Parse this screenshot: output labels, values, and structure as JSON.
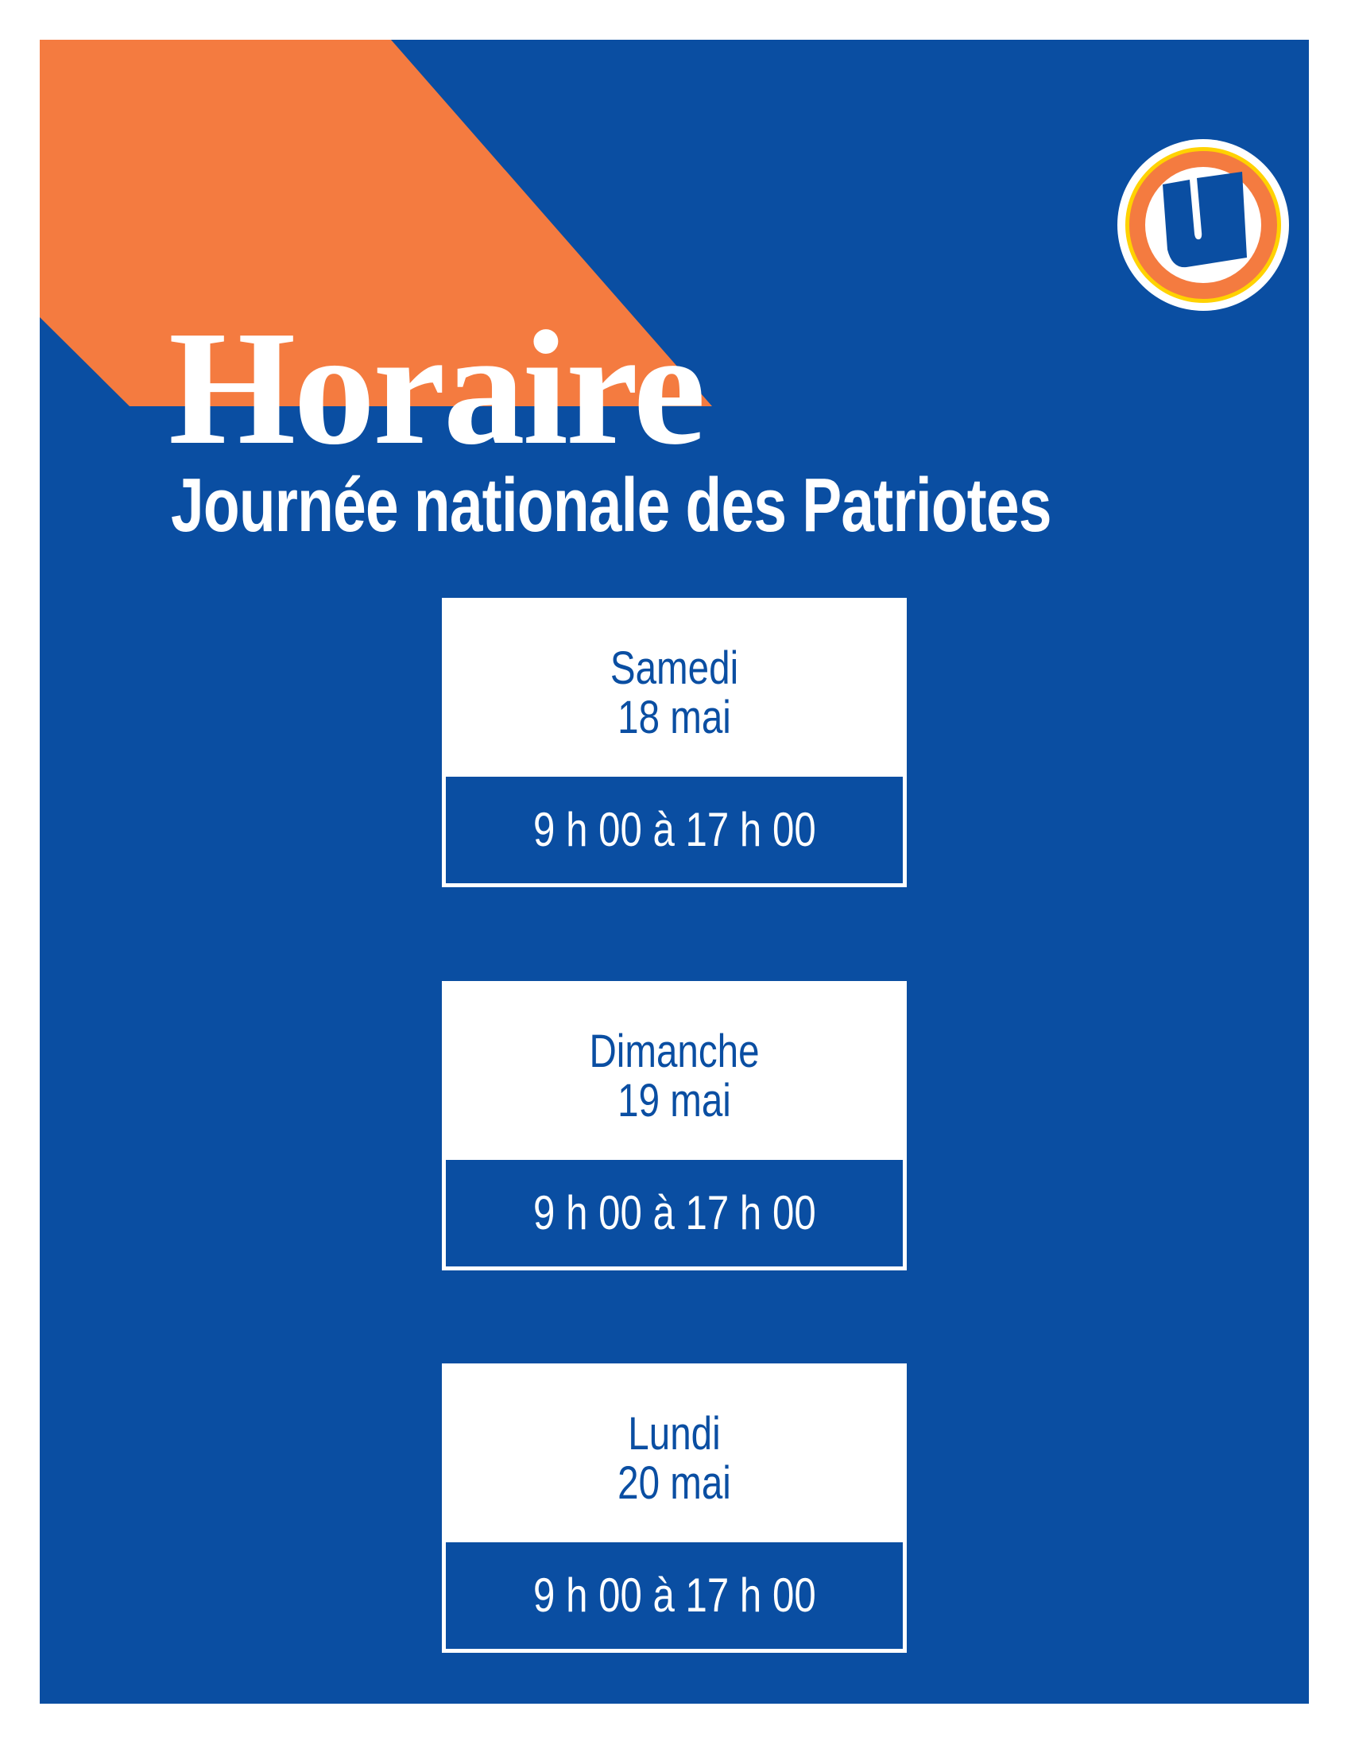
{
  "title": "Horaire",
  "subtitle": "Journée nationale des Patriotes",
  "logo": {
    "icon": "u-logo-icon",
    "letter": "U"
  },
  "colors": {
    "background": "#0a4ea2",
    "accent": "#f47b40",
    "logo_ring": "#ffd200",
    "text": "#ffffff"
  },
  "days": [
    {
      "day": "Samedi",
      "date": "18 mai",
      "hours": "9 h 00 à 17 h 00"
    },
    {
      "day": "Dimanche",
      "date": "19 mai",
      "hours": "9 h 00 à 17 h 00"
    },
    {
      "day": "Lundi",
      "date": "20 mai",
      "hours": "9 h 00 à 17 h 00"
    }
  ]
}
